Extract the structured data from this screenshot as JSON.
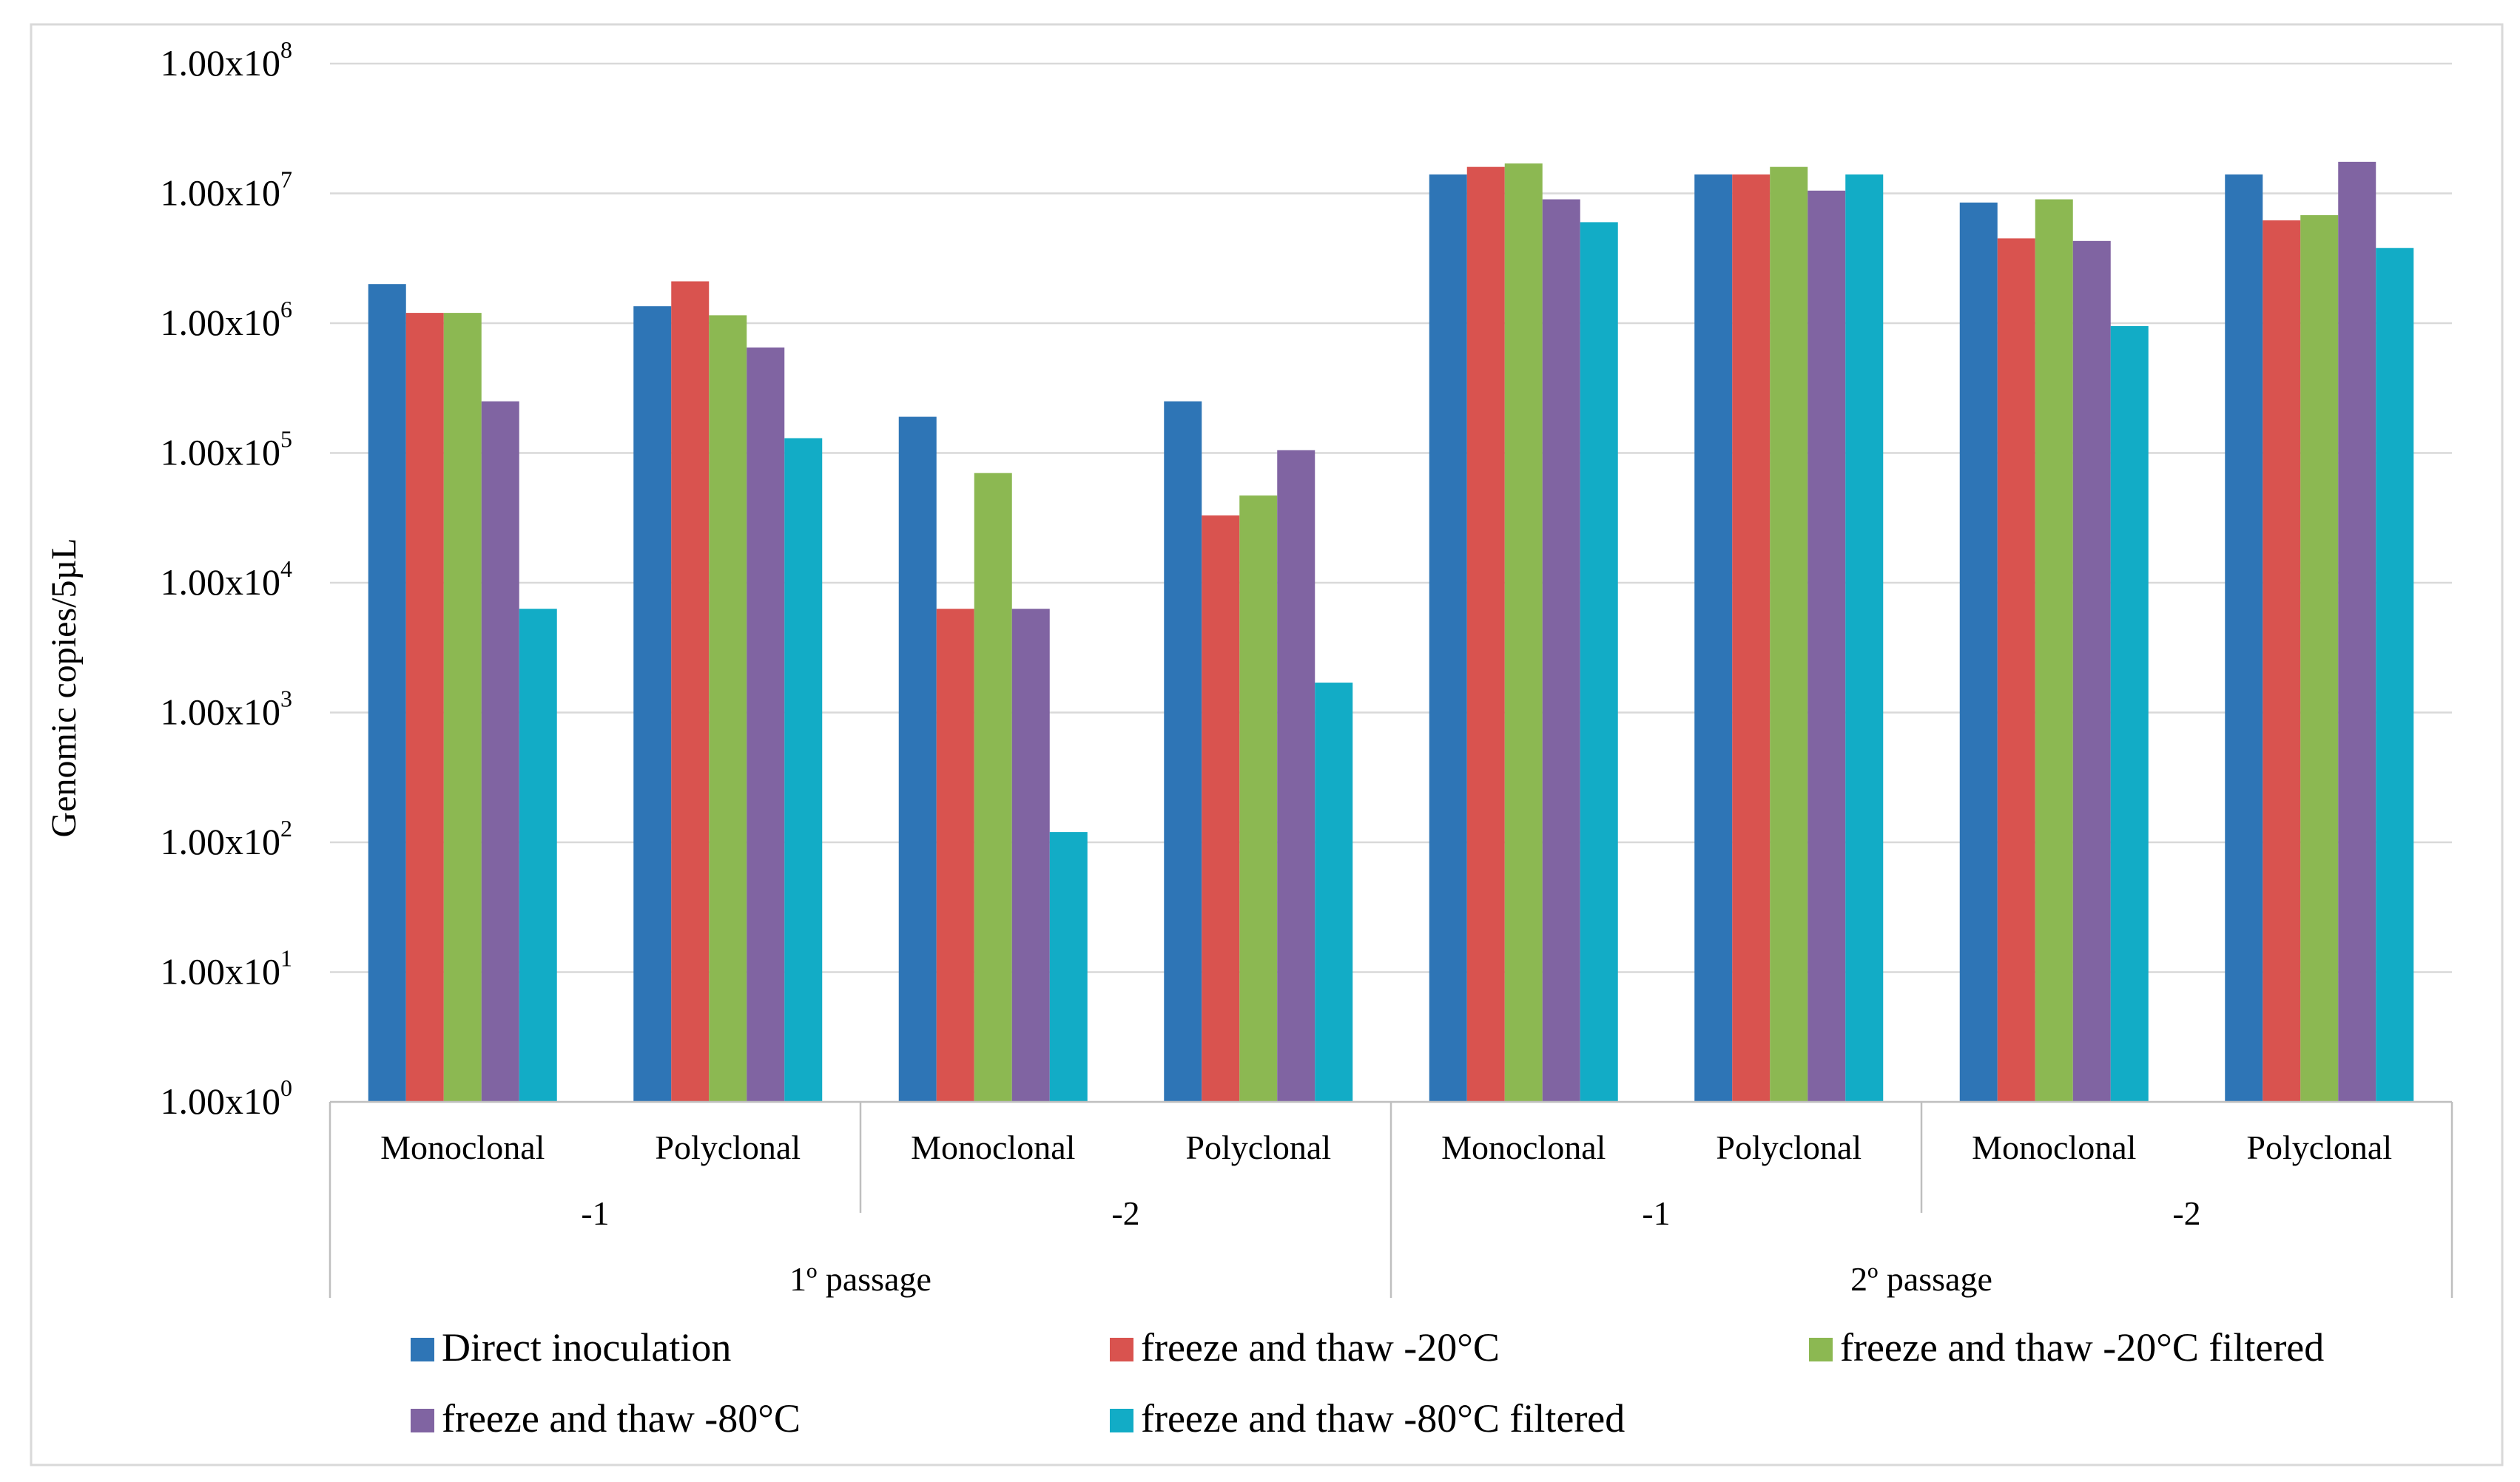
{
  "chart_data": {
    "type": "bar",
    "title": "",
    "xlabel": "",
    "ylabel": "Genomic copies/5µL",
    "yscale": "log10",
    "ylim": [
      1,
      100000000
    ],
    "grid": true,
    "legend_position": "bottom",
    "y_ticks": [
      {
        "mantissa": "1.00x10",
        "exp": "0"
      },
      {
        "mantissa": "1.00x10",
        "exp": "1"
      },
      {
        "mantissa": "1.00x10",
        "exp": "2"
      },
      {
        "mantissa": "1.00x10",
        "exp": "3"
      },
      {
        "mantissa": "1.00x10",
        "exp": "4"
      },
      {
        "mantissa": "1.00x10",
        "exp": "5"
      },
      {
        "mantissa": "1.00x10",
        "exp": "6"
      },
      {
        "mantissa": "1.00x10",
        "exp": "7"
      },
      {
        "mantissa": "1.00x10",
        "exp": "8"
      }
    ],
    "categories": [
      "Monoclonal",
      "Polyclonal",
      "Monoclonal",
      "Polyclonal",
      "Monoclonal",
      "Polyclonal",
      "Monoclonal",
      "Polyclonal"
    ],
    "subgroups": [
      {
        "label": "-1",
        "span": 2
      },
      {
        "label": "-2",
        "span": 2
      },
      {
        "label": "-1",
        "span": 2
      },
      {
        "label": "-2",
        "span": 2
      }
    ],
    "groups": [
      {
        "label": "1º passage",
        "span": 4
      },
      {
        "label": "2º passage",
        "span": 4
      }
    ],
    "series": [
      {
        "name": "Direct inoculation",
        "color": "#2e75b6",
        "values": [
          2000000,
          1350000,
          190000,
          250000,
          14000000,
          14000000,
          8500000,
          14000000
        ]
      },
      {
        "name": "freeze and thaw -20°C",
        "color": "#d9534f",
        "values": [
          1200000,
          2100000,
          6300,
          33000,
          16000000,
          14000000,
          4500000,
          6200000
        ]
      },
      {
        "name": "freeze and thaw -20°C filtered",
        "color": "#8cb852",
        "values": [
          1200000,
          1150000,
          70000,
          47000,
          17000000,
          16000000,
          9000000,
          6800000
        ]
      },
      {
        "name": "freeze and thaw -80°C",
        "color": "#8064a2",
        "values": [
          250000,
          650000,
          6300,
          105000,
          9000000,
          10500000,
          4300000,
          17500000
        ]
      },
      {
        "name": "freeze and thaw -80°C filtered",
        "color": "#12acc6",
        "values": [
          6300,
          130000,
          120,
          1700,
          6000000,
          14000000,
          950000,
          3800000
        ]
      }
    ]
  }
}
